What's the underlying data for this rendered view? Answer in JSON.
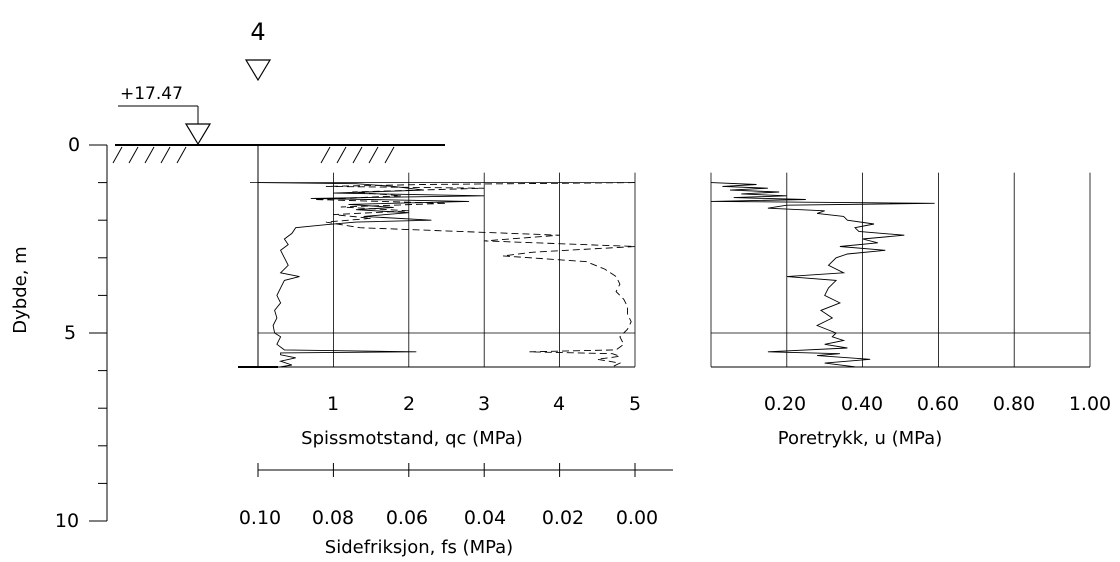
{
  "figure": {
    "borehole_number": "4",
    "ground_level_label": "+17.47"
  },
  "chart_data": [
    {
      "type": "line",
      "name": "depth-axis",
      "ylabel": "Dybde, m",
      "ylim": [
        0,
        10
      ],
      "y_ticks": [
        0,
        5,
        10
      ],
      "y_tick_labels": [
        "0",
        "5",
        "10"
      ],
      "end_depth": 5.9,
      "marker_depths": [
        1.0,
        5.0
      ]
    },
    {
      "type": "line",
      "name": "cone-resistance-and-friction",
      "xlabel": "Spissmotstand, qc (MPa)",
      "xlim": [
        0,
        5
      ],
      "x_ticks": [
        1,
        2,
        3,
        4,
        5
      ],
      "x_tick_labels": [
        "1",
        "2",
        "3",
        "4",
        "5"
      ],
      "secondary_xlabel": "Sidefriksjon, fs (MPa)",
      "secondary_xlim": [
        0.1,
        0.0
      ],
      "secondary_x_ticks": [
        0.1,
        0.08,
        0.06,
        0.04,
        0.02,
        0.0
      ],
      "secondary_x_tick_labels": [
        "0.10",
        "0.08",
        "0.06",
        "0.04",
        "0.02",
        "0.00"
      ],
      "series": [
        {
          "style": "solid",
          "depth": [
            1.0,
            1.03,
            1.1,
            1.2,
            1.28,
            1.35,
            1.42,
            1.5,
            1.58,
            1.66,
            1.72,
            1.8,
            1.9,
            2.0,
            2.05,
            2.12,
            2.2,
            2.35,
            2.5,
            2.65,
            2.8,
            3.0,
            3.2,
            3.4,
            3.5,
            3.6,
            3.8,
            4.0,
            4.2,
            4.4,
            4.6,
            4.8,
            5.0,
            5.1,
            5.3,
            5.45,
            5.5,
            5.53,
            5.58,
            5.66,
            5.75,
            5.85,
            5.9
          ],
          "qc": [
            0.0,
            1.3,
            1.8,
            2.2,
            1.0,
            3.0,
            0.7,
            2.8,
            1.2,
            1.8,
            1.3,
            2.0,
            1.4,
            2.3,
            1.3,
            0.9,
            0.5,
            0.45,
            0.35,
            0.4,
            0.3,
            0.35,
            0.4,
            0.3,
            0.55,
            0.35,
            0.3,
            0.25,
            0.3,
            0.22,
            0.25,
            0.2,
            0.22,
            0.3,
            0.25,
            0.35,
            2.1,
            0.3,
            0.3,
            0.5,
            0.3,
            0.45,
            0.3
          ]
        },
        {
          "style": "dashed",
          "depth": [
            1.0,
            1.05,
            1.1,
            1.15,
            1.25,
            1.35,
            1.45,
            1.55,
            1.65,
            1.75,
            1.85,
            1.95,
            2.05,
            2.2,
            2.4,
            2.55,
            2.7,
            2.85,
            2.95,
            3.1,
            3.3,
            3.5,
            3.7,
            3.9,
            4.1,
            4.3,
            4.5,
            4.7,
            4.9,
            5.1,
            5.3,
            5.45,
            5.5,
            5.55,
            5.62,
            5.7,
            5.8,
            5.9
          ],
          "fs": [
            0.0,
            0.056,
            0.082,
            0.04,
            0.075,
            0.062,
            0.085,
            0.05,
            0.078,
            0.06,
            0.08,
            0.07,
            0.082,
            0.073,
            0.02,
            0.04,
            0.0,
            0.027,
            0.035,
            0.013,
            0.008,
            0.005,
            0.004,
            0.005,
            0.003,
            0.002,
            0.002,
            0.001,
            0.002,
            0.004,
            0.003,
            0.005,
            0.028,
            0.006,
            0.004,
            0.01,
            0.004,
            0.006
          ]
        }
      ]
    },
    {
      "type": "line",
      "name": "pore-pressure",
      "xlabel": "Poretrykk, u (MPa)",
      "xlim": [
        0,
        1.0
      ],
      "x_ticks": [
        0.2,
        0.4,
        0.6,
        0.8,
        1.0
      ],
      "x_tick_labels": [
        "0.20",
        "0.40",
        "0.60",
        "0.80",
        "1.00"
      ],
      "series": [
        {
          "style": "solid",
          "depth": [
            1.0,
            1.05,
            1.1,
            1.15,
            1.2,
            1.25,
            1.3,
            1.35,
            1.4,
            1.45,
            1.5,
            1.55,
            1.6,
            1.68,
            1.75,
            1.82,
            1.9,
            2.0,
            2.1,
            2.2,
            2.3,
            2.4,
            2.5,
            2.6,
            2.7,
            2.8,
            2.9,
            3.0,
            3.2,
            3.4,
            3.5,
            3.6,
            3.8,
            4.0,
            4.2,
            4.4,
            4.6,
            4.8,
            5.0,
            5.1,
            5.2,
            5.3,
            5.4,
            5.5,
            5.55,
            5.6,
            5.7,
            5.8,
            5.9
          ],
          "u": [
            0.0,
            0.12,
            0.03,
            0.15,
            0.05,
            0.18,
            0.08,
            0.2,
            0.06,
            0.25,
            0.0,
            0.59,
            0.2,
            0.15,
            0.3,
            0.28,
            0.35,
            0.36,
            0.43,
            0.38,
            0.39,
            0.51,
            0.4,
            0.44,
            0.34,
            0.46,
            0.36,
            0.33,
            0.31,
            0.35,
            0.2,
            0.33,
            0.31,
            0.3,
            0.34,
            0.29,
            0.32,
            0.28,
            0.33,
            0.32,
            0.35,
            0.3,
            0.36,
            0.15,
            0.34,
            0.28,
            0.42,
            0.3,
            0.38
          ]
        }
      ]
    }
  ]
}
